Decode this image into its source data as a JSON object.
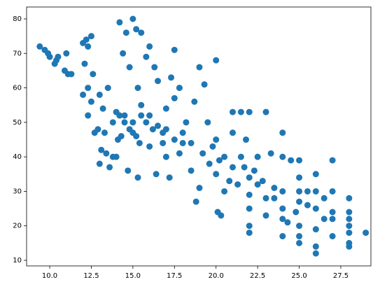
{
  "chart_data": {
    "type": "scatter",
    "color": "#1f77b4",
    "x": [
      9.4,
      9.7,
      9.9,
      10,
      10.3,
      10.4,
      10.5,
      11,
      10.9,
      11.1,
      11.3,
      12,
      12.2,
      12.5,
      12.3,
      12.1,
      12.6,
      12,
      12.3,
      12.5,
      12.3,
      12.7,
      12.9,
      13,
      13.2,
      13.1,
      13,
      13.5,
      13.4,
      13.8,
      13.6,
      14,
      14.2,
      14.4,
      14.6,
      14.8,
      14.5,
      14.2,
      14.1,
      14.7,
      15,
      15.2,
      15.5,
      15.3,
      15,
      15.2,
      15.5,
      15.8,
      16,
      16.3,
      16.5,
      16.2,
      16.4,
      15.3,
      16.8,
      17,
      17.3,
      17.5,
      17,
      17.2,
      17.5,
      17.8,
      18,
      18.2,
      18.5,
      18.7,
      19,
      19.3,
      19,
      18.8,
      19.5,
      19.6,
      20,
      20,
      20,
      20.3,
      20.1,
      20.5,
      21,
      20.8,
      21,
      21.3,
      21.5,
      21.8,
      21.7,
      22,
      22,
      22,
      22,
      22.3,
      22.5,
      22.8,
      23,
      23,
      23.3,
      23,
      23.5,
      24,
      24,
      24,
      24,
      24,
      24.3,
      24.5,
      24.8,
      25,
      25,
      25,
      25,
      25,
      25,
      25,
      25.5,
      26,
      26,
      26,
      26,
      26,
      26,
      26.5,
      27,
      27,
      27,
      27,
      28,
      28,
      28,
      28,
      29,
      14,
      14.5,
      14.8,
      15,
      15.5,
      15.8,
      16,
      16.5,
      17,
      17.5,
      18,
      17.8,
      16,
      15.4,
      14.3,
      13.3,
      13.8,
      16.8,
      18.5,
      19.2,
      19.8,
      20.2,
      21,
      22,
      22.5,
      23.5,
      21.5,
      20.5,
      22,
      24,
      25.5,
      26.5,
      27,
      28,
      28,
      28
    ],
    "y": [
      72,
      71,
      70,
      69,
      67,
      68,
      69,
      70,
      65,
      64,
      64,
      73,
      74,
      75,
      72,
      67,
      64,
      58,
      60,
      56,
      52,
      47,
      48,
      58,
      54,
      42,
      38,
      60,
      41,
      40,
      37,
      40,
      79,
      70,
      76,
      66,
      50,
      52,
      45,
      36,
      80,
      77,
      76,
      60,
      50,
      46,
      55,
      69,
      72,
      66,
      62,
      48,
      35,
      34,
      47,
      54,
      63,
      57,
      40,
      34,
      71,
      60,
      44,
      50,
      36,
      56,
      66,
      61,
      31,
      27,
      50,
      38,
      68,
      45,
      35,
      23,
      24,
      40,
      47,
      33,
      53,
      32,
      53,
      45,
      37,
      53,
      25,
      20,
      18,
      36,
      40,
      33,
      53,
      28,
      41,
      23,
      28,
      47,
      40,
      30,
      17,
      22,
      21,
      39,
      24,
      39,
      34,
      30,
      27,
      20,
      17,
      15,
      30,
      35,
      25,
      14,
      12,
      19,
      30,
      28,
      39,
      30,
      24,
      17,
      28,
      22,
      15,
      14,
      18,
      53,
      52,
      48,
      47,
      52,
      50,
      52,
      49,
      48,
      45,
      47,
      41,
      43,
      44,
      46,
      47,
      50,
      44,
      44,
      41,
      43,
      39,
      37,
      34,
      32,
      31,
      40,
      30,
      29,
      25,
      26,
      22,
      22,
      20,
      24,
      18
    ],
    "xlim": [
      8.61,
      29.31
    ],
    "ylim": [
      8.38,
      83.45
    ],
    "xticks": [
      {
        "value": 10,
        "label": "10.0"
      },
      12.5,
      {
        "value": 15,
        "label": "15.0"
      },
      17.5,
      {
        "value": 20,
        "label": "20.0"
      },
      22.5,
      {
        "value": 25,
        "label": "25.0"
      },
      27.5
    ],
    "yticks": [
      10,
      20,
      30,
      40,
      50,
      60,
      70,
      80
    ]
  }
}
